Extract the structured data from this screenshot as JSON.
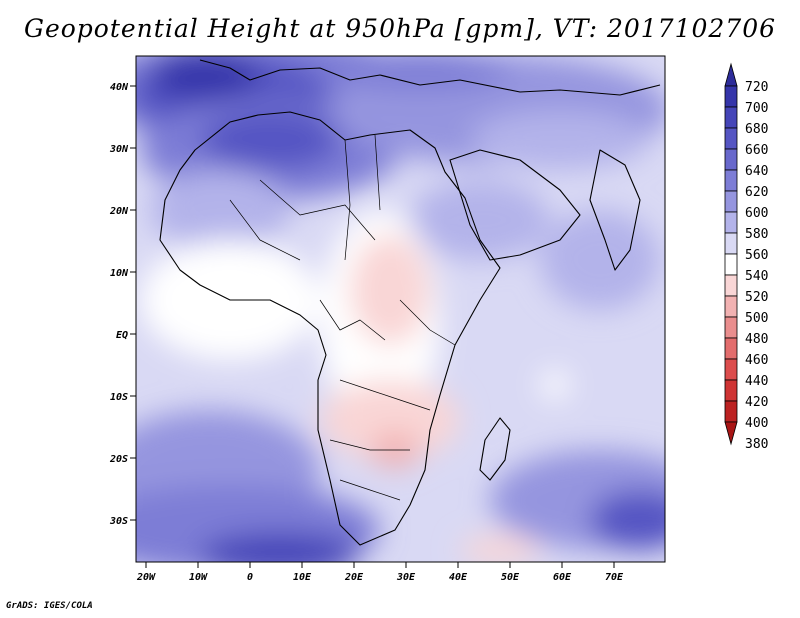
{
  "title": "Geopotential Height at 950hPa [gpm], VT: 2017102706",
  "footer": "GrADS: IGES/COLA",
  "lat_labels": [
    "40N",
    "30N",
    "20N",
    "10N",
    "EQ",
    "10S",
    "20S",
    "30S"
  ],
  "lon_labels": [
    "20W",
    "10W",
    "0",
    "10E",
    "20E",
    "30E",
    "40E",
    "50E",
    "60E",
    "70E"
  ],
  "colorbar": {
    "levels": [
      720,
      700,
      680,
      660,
      640,
      620,
      600,
      580,
      560,
      540,
      520,
      500,
      480,
      460,
      440,
      420,
      400,
      380
    ],
    "colors": {
      "above_700": "#2d2c9a",
      "700_680": "#3535aa",
      "680_660": "#4545b8",
      "660_640": "#5555c3",
      "640_620": "#6868cc",
      "620_600": "#7d7dd6",
      "600_580": "#9595df",
      "580_560": "#b3b3ea",
      "560_540": "#d9d9f4",
      "540_520": "#ffffff",
      "520_500": "#f9d6d6",
      "500_480": "#f2b2b2",
      "480_460": "#ea8e8e",
      "460_440": "#e36d6d",
      "440_420": "#dc4d4d",
      "420_400": "#cf3434",
      "400_380": "#bc2222",
      "below_380": "#a81515"
    }
  }
}
